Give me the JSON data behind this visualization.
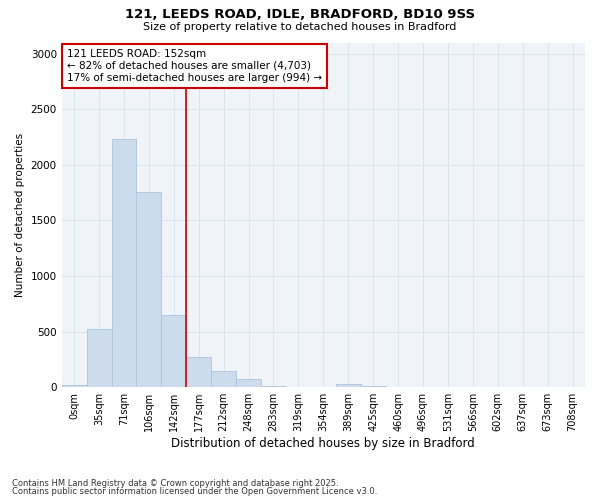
{
  "title1": "121, LEEDS ROAD, IDLE, BRADFORD, BD10 9SS",
  "title2": "Size of property relative to detached houses in Bradford",
  "xlabel": "Distribution of detached houses by size in Bradford",
  "ylabel": "Number of detached properties",
  "bar_labels": [
    "0sqm",
    "35sqm",
    "71sqm",
    "106sqm",
    "142sqm",
    "177sqm",
    "212sqm",
    "248sqm",
    "283sqm",
    "319sqm",
    "354sqm",
    "389sqm",
    "425sqm",
    "460sqm",
    "496sqm",
    "531sqm",
    "566sqm",
    "602sqm",
    "637sqm",
    "673sqm",
    "708sqm"
  ],
  "bar_values": [
    20,
    520,
    2230,
    1760,
    650,
    270,
    145,
    75,
    15,
    5,
    0,
    30,
    15,
    0,
    0,
    0,
    0,
    0,
    0,
    0,
    0
  ],
  "bar_color": "#ccdcec",
  "bar_edge_color": "#aac4dc",
  "grid_color": "#d8e4ee",
  "background_color": "#ffffff",
  "plot_bg_color": "#f0f4f8",
  "vline_color": "#cc0000",
  "vline_x_idx": 4,
  "annotation_text": "121 LEEDS ROAD: 152sqm\n← 82% of detached houses are smaller (4,703)\n17% of semi-detached houses are larger (994) →",
  "annotation_box_facecolor": "#ffffff",
  "annotation_box_edgecolor": "#cc0000",
  "footnote1": "Contains HM Land Registry data © Crown copyright and database right 2025.",
  "footnote2": "Contains public sector information licensed under the Open Government Licence v3.0.",
  "ylim": [
    0,
    3100
  ],
  "yticks": [
    0,
    500,
    1000,
    1500,
    2000,
    2500,
    3000
  ]
}
